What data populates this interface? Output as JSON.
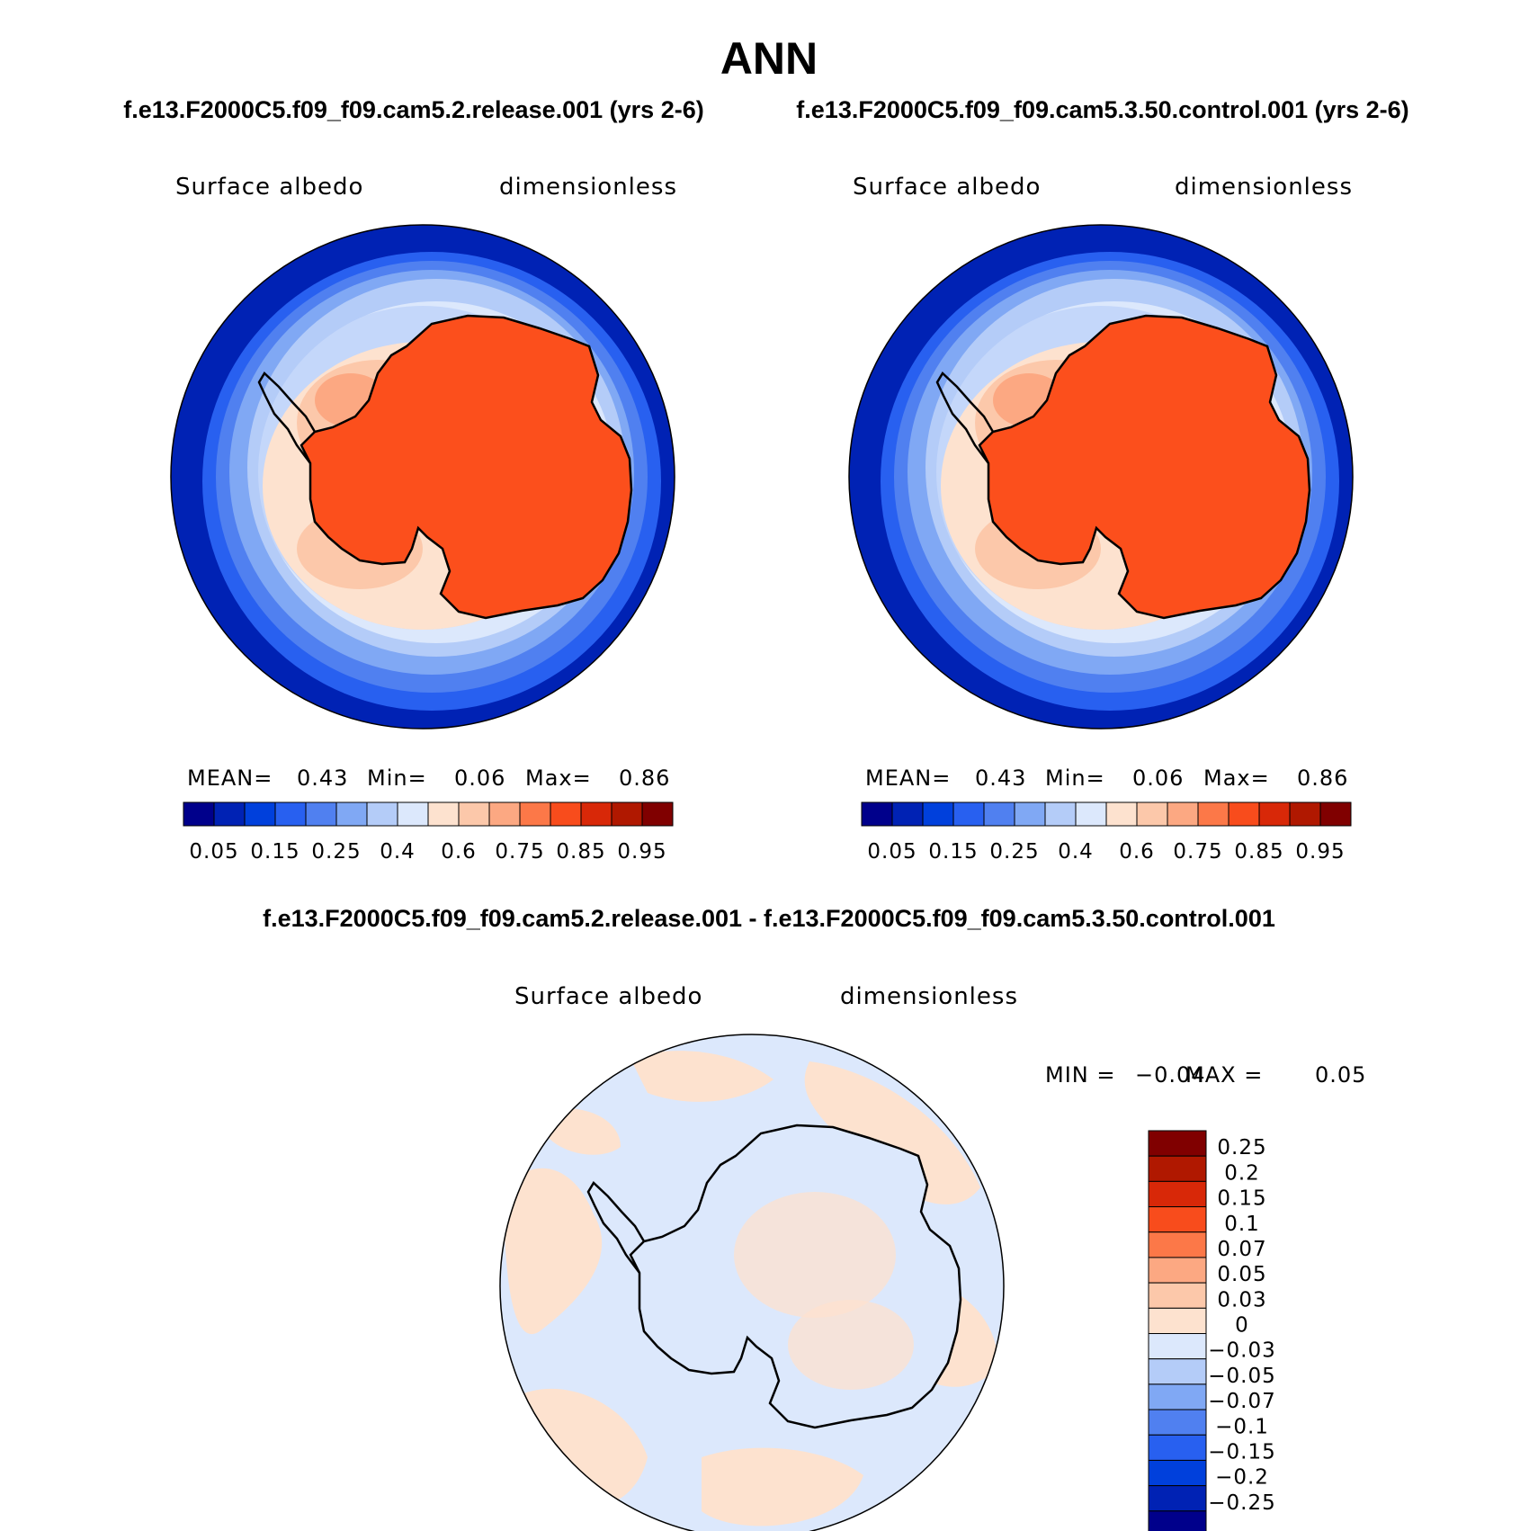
{
  "figure": {
    "title": "ANN",
    "left_case_title": "f.e13.F2000C5.f09_f09.cam5.2.release.001 (yrs 2-6)",
    "right_case_title": "f.e13.F2000C5.f09_f09.cam5.3.50.control.001 (yrs 2-6)",
    "diff_title": "f.e13.F2000C5.f09_f09.cam5.2.release.001 - f.e13.F2000C5.f09_f09.cam5.3.50.control.001"
  },
  "panels": [
    {
      "variable": "Surface albedo",
      "units": "dimensionless",
      "stats": {
        "mean_label": "MEAN=",
        "mean": "0.43",
        "min_label": "Min=",
        "min": "0.06",
        "max_label": "Max=",
        "max": "0.86"
      }
    },
    {
      "variable": "Surface albedo",
      "units": "dimensionless",
      "stats": {
        "mean_label": "MEAN=",
        "mean": "0.43",
        "min_label": "Min=",
        "min": "0.06",
        "max_label": "Max=",
        "max": "0.86"
      }
    }
  ],
  "diff_panel": {
    "variable": "Surface albedo",
    "units": "dimensionless",
    "min_label": "MIN =",
    "min": "−0.04",
    "max_label": "MAX =",
    "max": "0.05"
  },
  "colorbar": {
    "colors": [
      "#00008b",
      "#0022b4",
      "#0040dc",
      "#2860f0",
      "#5080f0",
      "#80a8f4",
      "#b4ccf8",
      "#dce8fc",
      "#fde2cf",
      "#fcc8aa",
      "#fca882",
      "#fc7848",
      "#f84c1c",
      "#d82808",
      "#b01800",
      "#800000"
    ],
    "tick_labels": [
      "0.05",
      "0.15",
      "0.25",
      "0.4",
      "0.6",
      "0.75",
      "0.85",
      "0.95"
    ]
  },
  "diff_colorbar": {
    "colors_top_to_bottom": [
      "#800000",
      "#b01800",
      "#d82808",
      "#f84c1c",
      "#fc7848",
      "#fca882",
      "#fcc8aa",
      "#fde2cf",
      "#dce8fc",
      "#b4ccf8",
      "#80a8f4",
      "#5080f0",
      "#2860f0",
      "#0040dc",
      "#0022b4",
      "#00008b"
    ],
    "tick_labels": [
      "0.25",
      "0.2",
      "0.15",
      "0.1",
      "0.07",
      "0.05",
      "0.03",
      "0",
      "−0.03",
      "−0.05",
      "−0.07",
      "−0.1",
      "−0.15",
      "−0.2",
      "−0.25"
    ]
  }
}
